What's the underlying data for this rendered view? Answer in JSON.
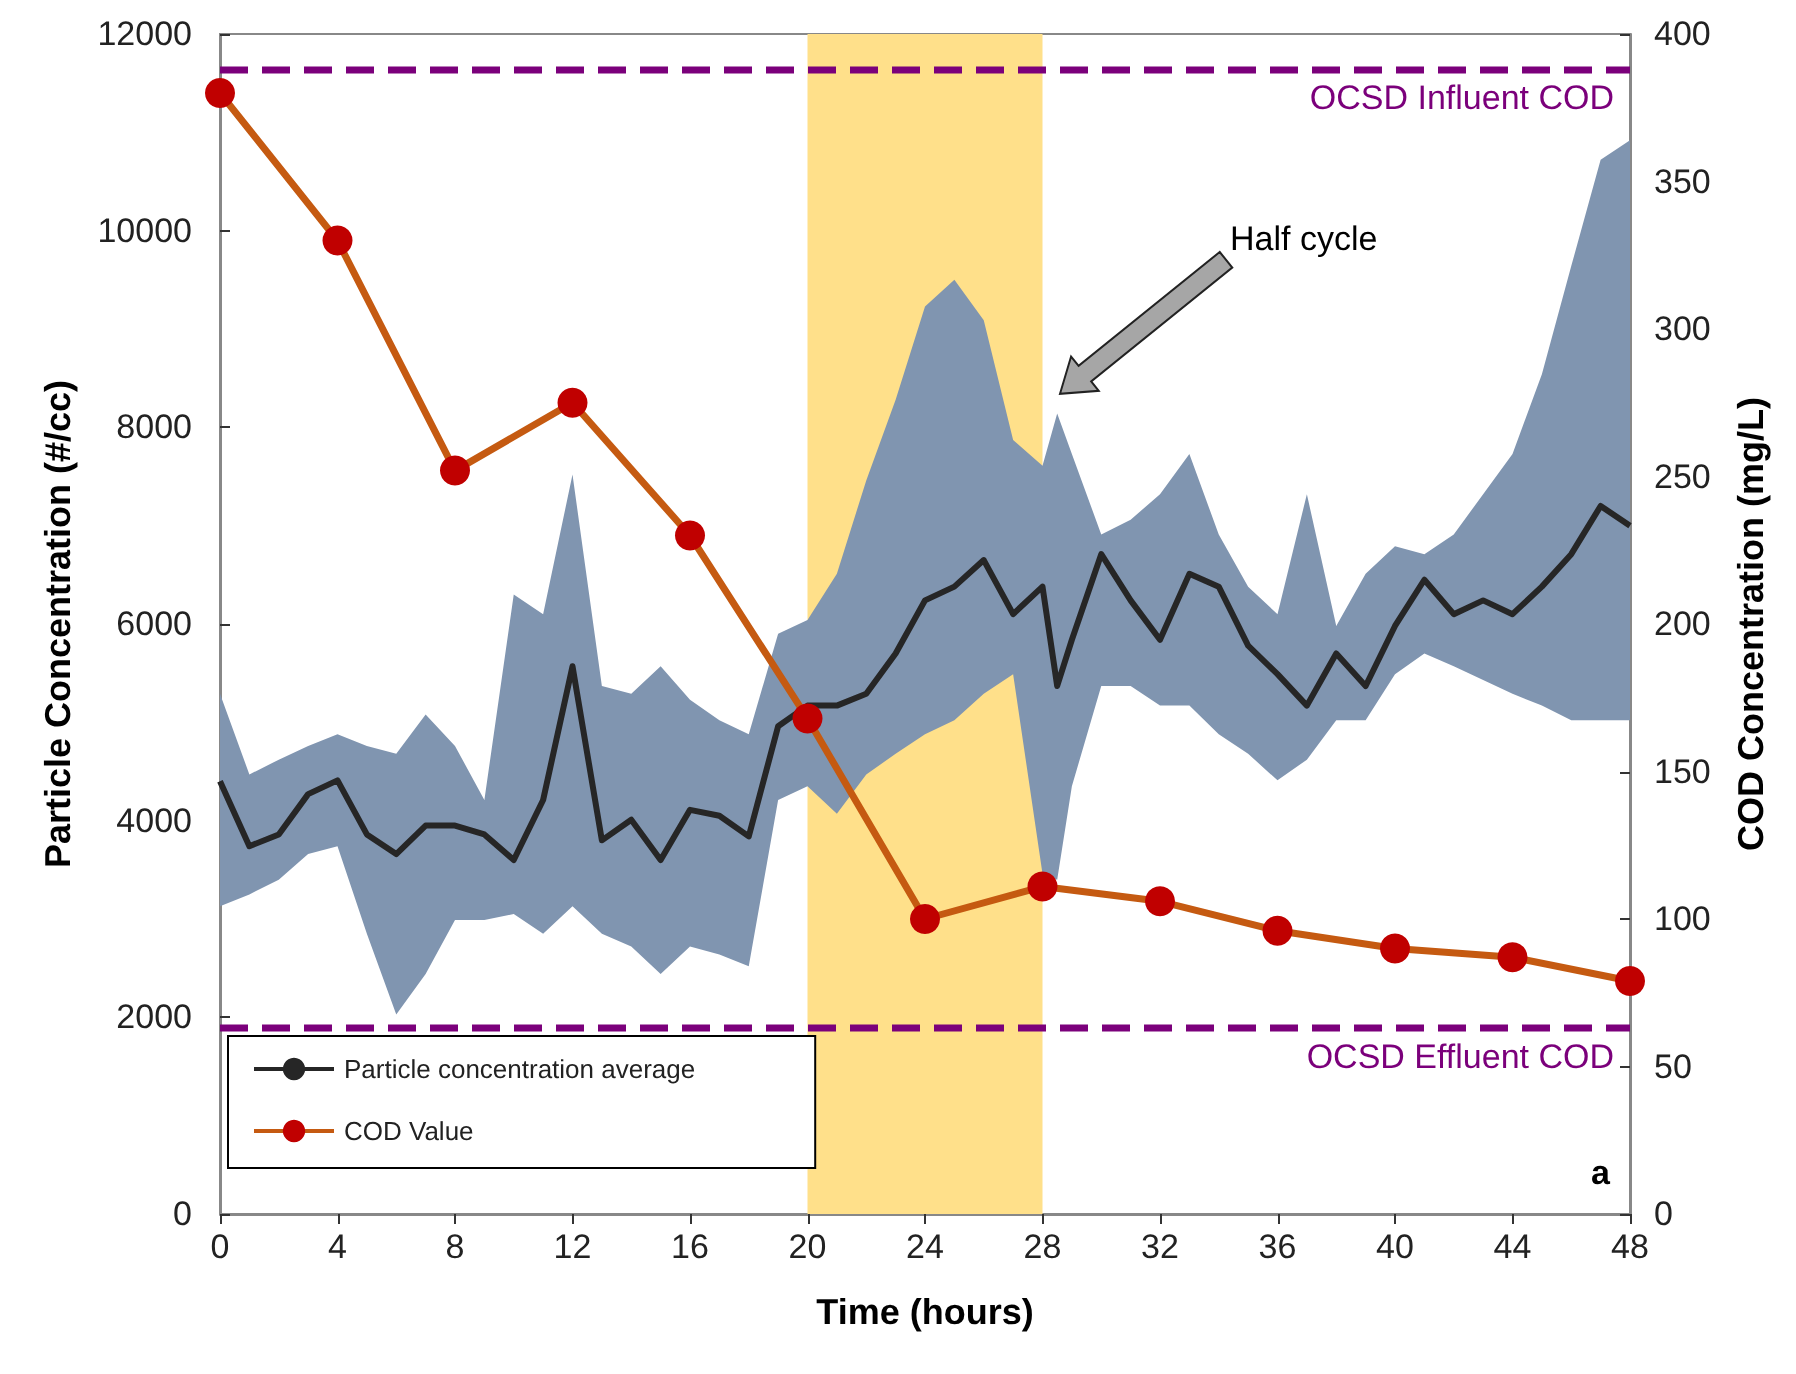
{
  "chart_data": {
    "type": "line",
    "xlabel": "Time (hours)",
    "ylabel": "Particle Concentration (#/cc)",
    "y2label": "COD Concentration (mg/L)",
    "xlim": [
      0,
      48
    ],
    "xticks": [
      0,
      4,
      8,
      12,
      16,
      20,
      24,
      28,
      32,
      36,
      40,
      44,
      48
    ],
    "ylim": [
      0,
      12000
    ],
    "yticks": [
      0,
      2000,
      4000,
      6000,
      8000,
      10000,
      12000
    ],
    "y2lim": [
      0,
      400
    ],
    "y2ticks": [
      0,
      50,
      100,
      150,
      200,
      250,
      300,
      350,
      400
    ],
    "legend": "bottom left",
    "series": [
      {
        "name": "Particle concentration average",
        "color": "#262626",
        "marker": "none",
        "x": [
          0,
          1,
          2,
          3,
          4,
          5,
          6,
          7,
          8,
          9,
          10,
          11,
          12,
          13,
          14,
          15,
          16,
          17,
          18,
          19,
          20,
          21,
          22,
          23,
          24,
          25,
          26,
          27,
          28,
          28.5,
          29,
          30,
          31,
          32,
          33,
          34,
          35,
          36,
          37,
          38,
          39,
          40,
          41,
          42,
          43,
          44,
          45,
          46,
          47,
          48
        ],
        "values": [
          4400,
          3740,
          3860,
          4270,
          4410,
          3860,
          3660,
          3950,
          3950,
          3860,
          3600,
          4210,
          5570,
          3800,
          4010,
          3600,
          4110,
          4050,
          3840,
          4960,
          5170,
          5170,
          5290,
          5700,
          6240,
          6380,
          6650,
          6100,
          6380,
          5370,
          5840,
          6710,
          6240,
          5840,
          6510,
          6380,
          5780,
          5490,
          5170,
          5700,
          5370,
          5980,
          6450,
          6100,
          6240,
          6100,
          6380,
          6710,
          7200,
          7000
        ],
        "lower": [
          3130,
          3250,
          3400,
          3660,
          3740,
          2850,
          2030,
          2440,
          2990,
          2990,
          3050,
          2850,
          3130,
          2850,
          2720,
          2440,
          2720,
          2640,
          2520,
          4210,
          4350,
          4070,
          4470,
          4680,
          4880,
          5020,
          5290,
          5490,
          3460,
          3400,
          4350,
          5370,
          5370,
          5170,
          5170,
          4880,
          4680,
          4410,
          4620,
          5020,
          5020,
          5490,
          5700,
          5570,
          5430,
          5290,
          5170,
          5020,
          5020,
          5020
        ],
        "upper": [
          5290,
          4470,
          4620,
          4760,
          4880,
          4760,
          4680,
          5080,
          4760,
          4210,
          6300,
          6100,
          7520,
          5370,
          5290,
          5570,
          5230,
          5020,
          4880,
          5900,
          6040,
          6510,
          7460,
          8280,
          9230,
          9500,
          9090,
          7870,
          7610,
          8140,
          7730,
          6910,
          7060,
          7320,
          7730,
          6910,
          6380,
          6100,
          7320,
          5980,
          6510,
          6790,
          6710,
          6910,
          7320,
          7730,
          8540,
          9640,
          10720,
          10920
        ]
      },
      {
        "name": "COD Value",
        "color": "#c55a11",
        "colors": [
          "#c00000",
          "#c00000",
          "#c00000",
          "#c00000",
          "#c00000",
          "#c00000",
          "#c00000",
          "#c00000",
          "#c00000",
          "#c00000",
          "#c00000",
          "#c00000",
          "#c00000"
        ],
        "axis": "y2",
        "marker": "circle",
        "x": [
          0,
          4,
          8,
          12,
          16,
          20,
          24,
          28,
          32,
          36,
          40,
          44,
          48
        ],
        "values": [
          380,
          330,
          252,
          275,
          230,
          168,
          100,
          111,
          106,
          96,
          90,
          87,
          79
        ]
      }
    ],
    "ref_lines": [
      {
        "axis": "y2",
        "value": 388,
        "label": "OCSD Influent COD",
        "color": "#7b007b",
        "line_style": "dashed"
      },
      {
        "axis": "y2",
        "value": 63,
        "label": "OCSD Effluent COD",
        "color": "#7b007b",
        "line_style": "dashed"
      }
    ],
    "bands": [
      {
        "axis": "x",
        "from": 20,
        "to": 28,
        "color": "#ffe08a"
      }
    ],
    "annotations": [
      "Half cycle",
      "a"
    ]
  }
}
